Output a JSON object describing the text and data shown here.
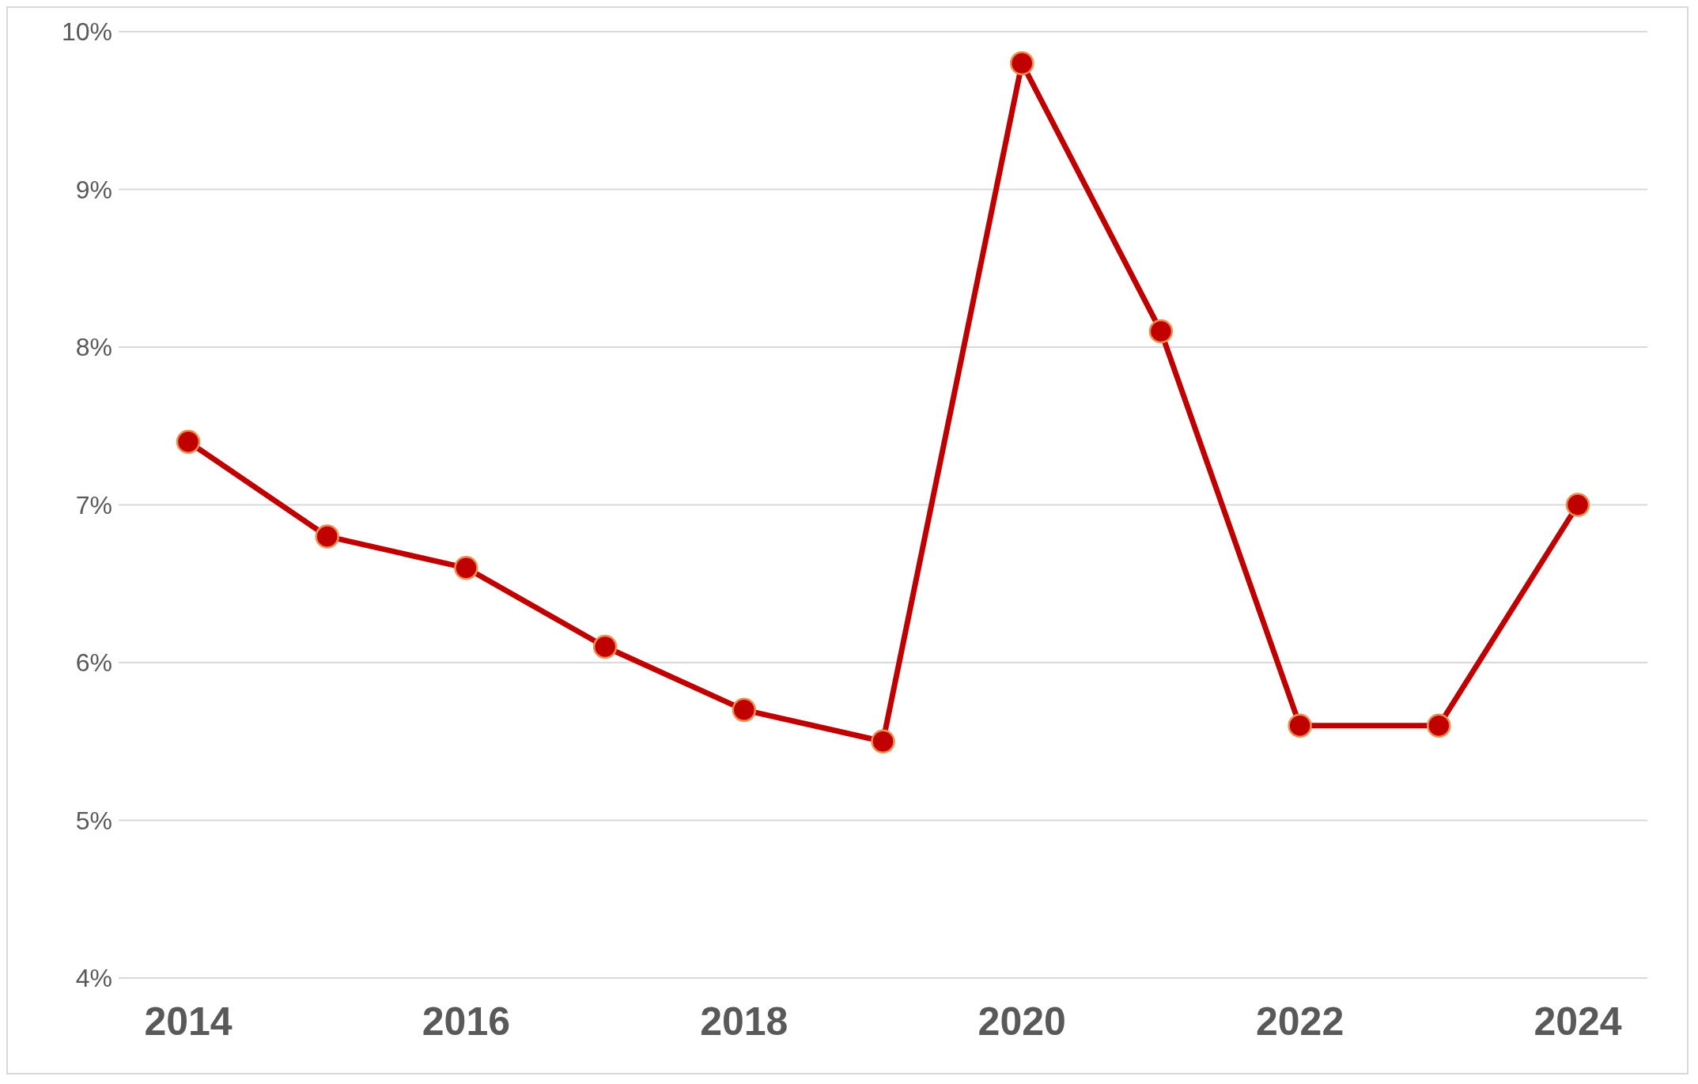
{
  "chart_data": {
    "type": "line",
    "categories": [
      "2014",
      null,
      "2016",
      null,
      "2018",
      null,
      "2020",
      null,
      "2022",
      null,
      "2024"
    ],
    "series": [
      {
        "color": "#c00000",
        "values": [
          7.4,
          6.8,
          6.6,
          6.1,
          5.7,
          5.5,
          9.8,
          8.1,
          5.6,
          5.6,
          7.0
        ]
      }
    ],
    "ylim": [
      4,
      10
    ],
    "yticks": [
      {
        "value": 4,
        "label": "4%"
      },
      {
        "value": 5,
        "label": "5%"
      },
      {
        "value": 6,
        "label": "6%"
      },
      {
        "value": 7,
        "label": "7%"
      },
      {
        "value": 8,
        "label": "8%"
      },
      {
        "value": 9,
        "label": "9%"
      },
      {
        "value": 10,
        "label": "10%"
      }
    ],
    "grid": "y",
    "marker": "circle"
  }
}
